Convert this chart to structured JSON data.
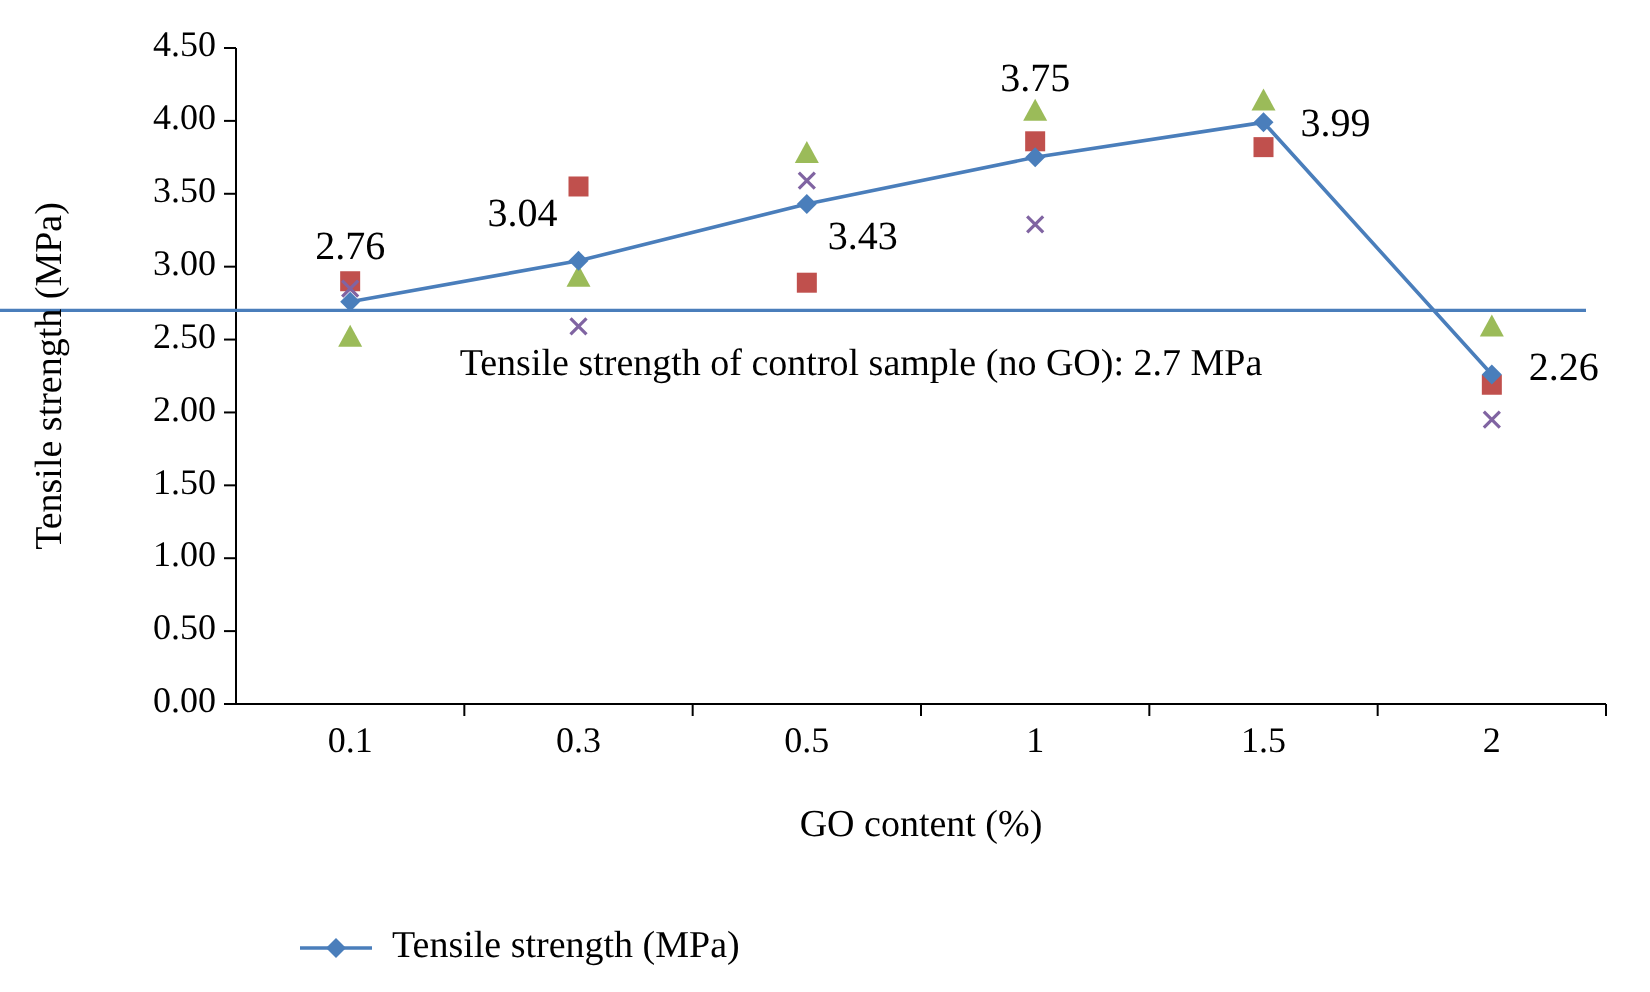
{
  "chart_data": {
    "type": "line",
    "xlabel": "GO content (%)",
    "ylabel": "Tensile strength (MPa)",
    "categories": [
      "0.1",
      "0.3",
      "0.5",
      "1",
      "1.5",
      "2"
    ],
    "ylim": [
      0,
      4.5
    ],
    "yticks": [
      {
        "value": 0,
        "label": "0.00"
      },
      {
        "value": 0.5,
        "label": "0.50"
      },
      {
        "value": 1,
        "label": "1.00"
      },
      {
        "value": 1.5,
        "label": "1.50"
      },
      {
        "value": 2,
        "label": "2.00"
      },
      {
        "value": 2.5,
        "label": "2.50"
      },
      {
        "value": 3,
        "label": "3.00"
      },
      {
        "value": 3.5,
        "label": "3.50"
      },
      {
        "value": 4,
        "label": "4.00"
      },
      {
        "value": 4.5,
        "label": "4.50"
      }
    ],
    "grid": false,
    "legend": "bottom left",
    "series": [
      {
        "type": "scatter",
        "color": "#c0504d",
        "marker": "square",
        "values": [
          2.9,
          3.55,
          2.89,
          3.86,
          3.82,
          2.19
        ]
      },
      {
        "type": "scatter",
        "color": "#9bbb59",
        "marker": "triangle",
        "values": [
          2.52,
          2.93,
          3.78,
          4.07,
          4.14,
          2.59
        ]
      },
      {
        "type": "scatter",
        "color": "#8064a2",
        "marker": "cross",
        "values": [
          2.85,
          2.59,
          3.59,
          3.29,
          null,
          1.95
        ]
      },
      {
        "name": "Tensile strength (MPa)",
        "color": "#4a7ebb",
        "marker": "diamond",
        "data_labels": true,
        "values": [
          2.76,
          3.04,
          3.43,
          3.75,
          3.99,
          2.26
        ]
      }
    ],
    "ref_lines": [
      {
        "axis": "y",
        "value": 2.7,
        "label": "Tensile strength of control sample (no GO): 2.7 MPa",
        "color": "#4a7ebb"
      }
    ]
  }
}
